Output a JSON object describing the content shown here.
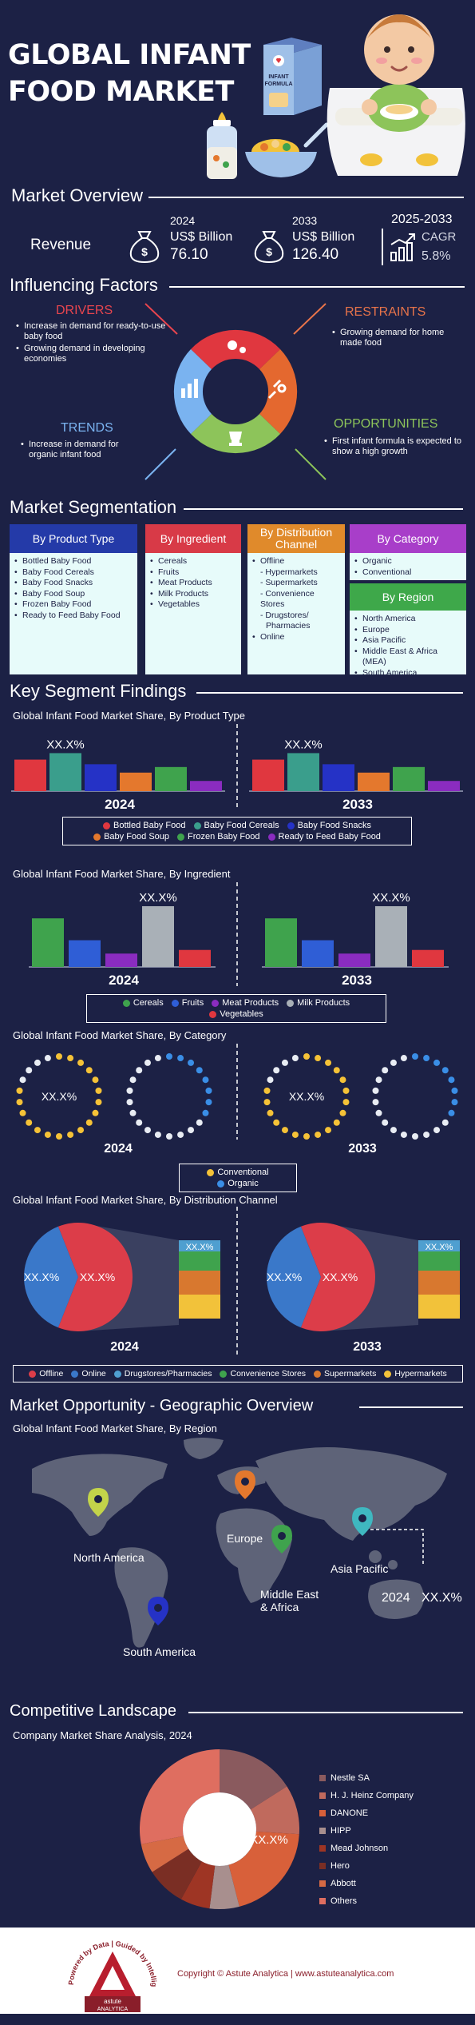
{
  "header": {
    "title_line1": "GLOBAL INFANT",
    "title_line2": "FOOD MARKET",
    "box_label_1": "INFANT",
    "box_label_2": "FORMULA"
  },
  "overview": {
    "title": "Market Overview",
    "revenue_label": "Revenue",
    "y2024": "2024",
    "unit2024": "US$ Billion",
    "val2024": "76.10",
    "y2033": "2033",
    "unit2033": "US$ Billion",
    "val2033": "126.40",
    "cagr_period": "2025-2033",
    "cagr_label": "CAGR",
    "cagr_value": "5.8%"
  },
  "factors": {
    "title": "Influencing Factors",
    "drivers": {
      "label": "DRIVERS",
      "color": "#e8454e",
      "items": [
        "Increase in demand for ready-to-use baby food",
        "Growing demand in developing economies"
      ]
    },
    "restraints": {
      "label": "RESTRAINTS",
      "color": "#e8744a",
      "items": [
        "Growing demand for home made food"
      ]
    },
    "trends": {
      "label": "TRENDS",
      "color": "#7ab3f0",
      "items": [
        "Increase in demand for organic infant food"
      ]
    },
    "opportunities": {
      "label": "OPPORTUNITIES",
      "color": "#8dc45a",
      "items": [
        "First infant formula is expected to show a high growth"
      ]
    }
  },
  "segmentation": {
    "title": "Market Segmentation",
    "product_type": {
      "label": "By Product Type",
      "color": "#243aa8",
      "items": [
        "Bottled Baby Food",
        "Baby Food Cereals",
        "Baby Food Snacks",
        "Baby Food Soup",
        "Frozen Baby Food",
        "Ready to Feed Baby Food"
      ]
    },
    "ingredient": {
      "label": "By Ingredient",
      "color": "#d83a47",
      "items": [
        "Cereals",
        "Fruits",
        "Meat Products",
        "Milk Products",
        "Vegetables"
      ]
    },
    "distribution": {
      "label_line1": "By Distribution",
      "label_line2": "Channel",
      "color": "#e08a2b",
      "offline": "Offline",
      "offline_items": [
        "Hypermarkets",
        "Supermarkets",
        "Convenience Stores",
        "Drugstores/",
        "Pharmacies"
      ],
      "online": "Online"
    },
    "category": {
      "label": "By Category",
      "color": "#a83ec9",
      "items": [
        "Organic",
        "Conventional"
      ]
    },
    "region": {
      "label": "By Region",
      "color": "#3ea84a",
      "items": [
        "North America",
        "Europe",
        "Asia Pacific",
        "Middle East & Africa (MEA)",
        "South America"
      ]
    }
  },
  "findings": {
    "title": "Key Segment Findings",
    "product_chart_title": "Global Infant Food Market Share, By Product Type",
    "ingredient_chart_title": "Global Infant Food Market Share, By Ingredient",
    "category_chart_title": "Global Infant Food Market Share, By Category",
    "distribution_chart_title": "Global Infant Food Market Share, By Distribution Channel",
    "placeholder": "XX.X%",
    "year_a": "2024",
    "year_b": "2033"
  },
  "chart_data": [
    {
      "type": "bar",
      "title": "Global Infant Food Market Share, By Product Type",
      "categories": [
        "2024",
        "2033"
      ],
      "series": [
        {
          "name": "Bottled Baby Food",
          "color": "#e0373f",
          "values": [
            0.68,
            0.68
          ]
        },
        {
          "name": "Baby Food Cereals",
          "color": "#3a9e8c",
          "values": [
            0.82,
            0.82
          ]
        },
        {
          "name": "Baby Food Snacks",
          "color": "#2532c6",
          "values": [
            0.58,
            0.58
          ]
        },
        {
          "name": "Baby Food Soup",
          "color": "#e4782d",
          "values": [
            0.4,
            0.4
          ]
        },
        {
          "name": "Frozen Baby Food",
          "color": "#3fa34d",
          "values": [
            0.52,
            0.52
          ]
        },
        {
          "name": "Ready to Feed Baby Food",
          "color": "#8a2cc0",
          "values": [
            0.22,
            0.22
          ]
        }
      ],
      "data_label": "XX.X%"
    },
    {
      "type": "bar",
      "title": "Global Infant Food Market Share, By Ingredient",
      "categories": [
        "2024",
        "2033"
      ],
      "series": [
        {
          "name": "Cereals",
          "color": "#3fa34d",
          "values": [
            0.8,
            0.8
          ]
        },
        {
          "name": "Fruits",
          "color": "#2f5ed6",
          "values": [
            0.44,
            0.44
          ]
        },
        {
          "name": "Meat Products",
          "color": "#8a2cc0",
          "values": [
            0.22,
            0.22
          ]
        },
        {
          "name": "Milk Products",
          "color": "#a9b0b7",
          "values": [
            1.0,
            1.0
          ]
        },
        {
          "name": "Vegetables",
          "color": "#e0373f",
          "values": [
            0.28,
            0.28
          ]
        }
      ],
      "data_label": "XX.X%"
    },
    {
      "type": "pie",
      "title": "Global Infant Food Market Share, By Category",
      "categories": [
        "2024",
        "2033"
      ],
      "series": [
        {
          "name": "Conventional",
          "color": "#f5c237"
        },
        {
          "name": "Organic",
          "color": "#3a8ee6"
        }
      ],
      "data_label": "XX.X%"
    },
    {
      "type": "pie",
      "title": "Global Infant Food Market Share, By Distribution Channel",
      "categories": [
        "2024",
        "2033"
      ],
      "series": [
        {
          "name": "Offline",
          "color": "#dc3d49"
        },
        {
          "name": "Online",
          "color": "#3a78c9"
        },
        {
          "name": "Drugstores/Pharmacies",
          "color": "#4f9fd0"
        },
        {
          "name": "Convenience Stores",
          "color": "#3fa34d"
        },
        {
          "name": "Supermarkets",
          "color": "#d8782f"
        },
        {
          "name": "Hypermarkets",
          "color": "#f2c23a"
        }
      ],
      "data_label": "XX.X%"
    }
  ],
  "geo": {
    "title": "Market Opportunity - Geographic Overview",
    "chart_title": "Global Infant Food Market Share, By Region",
    "north_america": "North America",
    "europe": "Europe",
    "asia_pacific": "Asia Pacific",
    "mea_line1": "Middle East",
    "mea_line2": "& Africa",
    "south_america": "South America",
    "callout_year": "2024",
    "callout_value": "XX.X%"
  },
  "competitive": {
    "title": "Competitive Landscape",
    "chart_title": "Company Market Share Analysis,",
    "chart_year": "2024",
    "center_label": "XX.X%",
    "companies": [
      {
        "name": "Nestle SA",
        "color": "#8a5a5e"
      },
      {
        "name": "H. J. Heinz Company",
        "color": "#c06a5d"
      },
      {
        "name": "DANONE",
        "color": "#d8603a"
      },
      {
        "name": "HIPP",
        "color": "#a88f8e"
      },
      {
        "name": "Mead Johnson",
        "color": "#9e3524"
      },
      {
        "name": "Hero",
        "color": "#7a2e24"
      },
      {
        "name": "Abbott",
        "color": "#d66a44"
      },
      {
        "name": "Others",
        "color": "#df6e60"
      }
    ]
  },
  "footer": {
    "copyright": "Copyright © Astute Analytica | www.astuteanalytica.com",
    "ring_text": "Powered by Data | Guided by Intelligence",
    "logo_text_1": "astute",
    "logo_text_2": "ANALYTICA"
  }
}
